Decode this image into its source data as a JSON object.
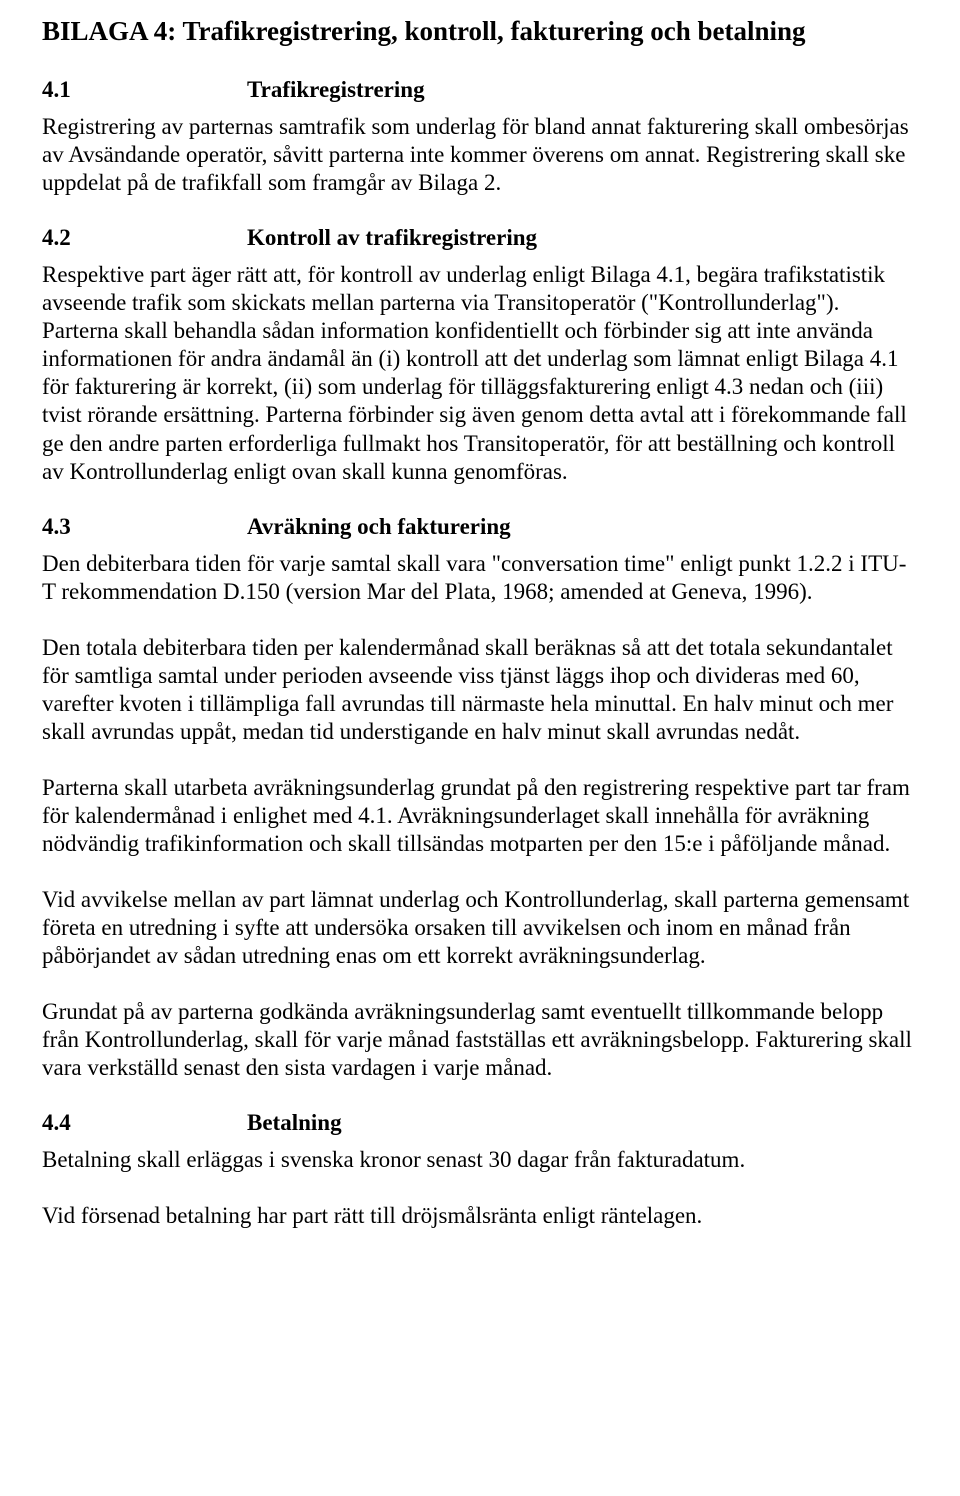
{
  "title": "BILAGA 4: Trafikregistrering, kontroll, fakturering och betalning",
  "sections": {
    "s41": {
      "num": "4.1",
      "title": "Trafikregistrering",
      "body": "Registrering av parternas samtrafik som underlag för bland annat fakturering skall ombesörjas av Avsändande operatör, såvitt parterna inte kommer överens om annat. Registrering skall ske uppdelat på de trafikfall som framgår av Bilaga 2."
    },
    "s42": {
      "num": "4.2",
      "title": "Kontroll av trafikregistrering",
      "body": "Respektive part äger rätt att, för kontroll av underlag enligt Bilaga 4.1, begära trafikstatistik avseende trafik som skickats mellan parterna via Transitoperatör (\"Kontrollunderlag\"). Parterna skall behandla sådan information konfidentiellt och förbinder sig att inte använda informationen för andra ändamål än (i) kontroll att det underlag som lämnat enligt Bilaga 4.1 för fakturering är korrekt, (ii) som underlag för tilläggsfakturering enligt 4.3 nedan och (iii) tvist rörande ersättning. Parterna förbinder sig även genom detta avtal att i förekommande fall ge den andre parten erforderliga fullmakt hos Transitoperatör, för att beställning och kontroll av Kontrollunderlag enligt ovan skall kunna genomföras."
    },
    "s43": {
      "num": "4.3",
      "title": "Avräkning och fakturering",
      "p1": "Den debiterbara tiden för varje samtal skall vara \"conversation time\" enligt punkt 1.2.2 i ITU-T rekommendation D.150 (version Mar del Plata, 1968; amended at Geneva, 1996).",
      "p2": "Den totala debiterbara tiden per kalendermånad skall beräknas så att det totala sekundantalet för samtliga samtal under perioden avseende viss tjänst läggs ihop och divideras med 60, varefter kvoten i tillämpliga fall avrundas till närmaste hela minuttal. En halv minut och mer skall avrundas uppåt, medan tid understigande en halv minut skall avrundas nedåt.",
      "p3": "Parterna skall utarbeta avräkningsunderlag grundat på den registrering respektive part tar fram för kalendermånad i enlighet med 4.1. Avräkningsunderlaget skall innehålla för avräkning nödvändig trafikinformation och skall tillsändas motparten per den 15:e i påföljande månad.",
      "p4": "Vid avvikelse mellan av part lämnat underlag och Kontrollunderlag, skall parterna gemensamt företa en utredning i syfte att undersöka orsaken till avvikelsen och inom en månad från påbörjandet av sådan utredning enas om ett korrekt avräkningsunderlag.",
      "p5": "Grundat på av parterna godkända avräkningsunderlag samt eventuellt tillkommande belopp från Kontrollunderlag, skall för varje månad fastställas ett avräkningsbelopp. Fakturering skall vara verkställd senast den sista vardagen i varje månad."
    },
    "s44": {
      "num": "4.4",
      "title": "Betalning",
      "p1": "Betalning skall erläggas i svenska kronor senast 30 dagar från fakturadatum.",
      "p2": "Vid försenad betalning har part rätt till dröjsmålsränta enligt räntelagen."
    }
  },
  "colors": {
    "text": "#000000",
    "background": "#ffffff"
  },
  "typography": {
    "family": "Times New Roman",
    "h1_size_pt": 20,
    "h2_size_pt": 17,
    "body_size_pt": 17,
    "line_height": 1.22
  }
}
